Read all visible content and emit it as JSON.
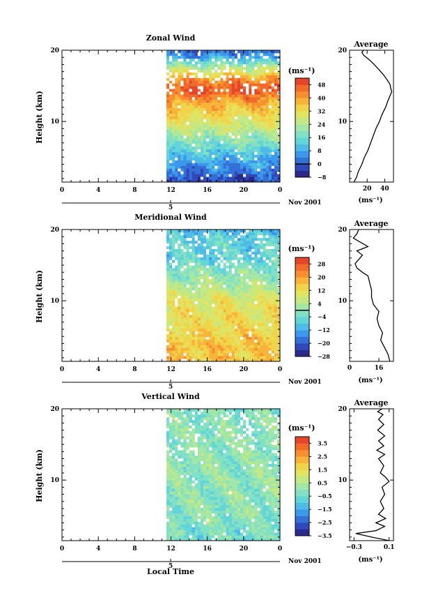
{
  "figure": {
    "date_label": "Nov 2001",
    "xlabel": "Local Time"
  },
  "chart_data": [
    {
      "type": "heatmap",
      "name": "zonal",
      "title": "Zonal Wind",
      "ylabel": "Height (km)",
      "x_ticks": [
        "0",
        "4",
        "8",
        "12",
        "16",
        "20",
        "0"
      ],
      "x_range": [
        0,
        24
      ],
      "y_ticks": [
        10,
        20
      ],
      "y_range": [
        1.5,
        20
      ],
      "date_marker": "5",
      "data_start_hour": 11.5,
      "colorbar": {
        "unit": "(ms⁻¹)",
        "min": -8,
        "max": 52,
        "step": 4,
        "tick_labels": [
          48,
          40,
          32,
          24,
          16,
          8,
          0,
          -8
        ],
        "zero_line": 0,
        "colors": [
          "#2b2a8c",
          "#2f4ab8",
          "#3370d8",
          "#3c98ea",
          "#4ebce6",
          "#63d4d8",
          "#82e0c4",
          "#a3e6a6",
          "#c4e884",
          "#e0e462",
          "#f2d44a",
          "#f8b43a",
          "#f78e30",
          "#f06a2a",
          "#e4462a"
        ]
      },
      "profile_by_height": [
        {
          "z": 1.5,
          "value": -3
        },
        {
          "z": 3,
          "value": 2
        },
        {
          "z": 5,
          "value": 10
        },
        {
          "z": 7,
          "value": 18
        },
        {
          "z": 9,
          "value": 26
        },
        {
          "z": 11,
          "value": 33
        },
        {
          "z": 13,
          "value": 40
        },
        {
          "z": 14,
          "value": 47
        },
        {
          "z": 15,
          "value": 47
        },
        {
          "z": 16,
          "value": 40
        },
        {
          "z": 17,
          "value": 30
        },
        {
          "z": 18,
          "value": 20
        },
        {
          "z": 19,
          "value": 8
        },
        {
          "z": 20,
          "value": 1
        }
      ],
      "average": {
        "title": "Average",
        "unit": "(ms⁻¹)",
        "x_ticks": [
          20,
          40
        ],
        "x_range": [
          0,
          50
        ],
        "profile": [
          {
            "z": 1.5,
            "v": 5
          },
          {
            "z": 2.2,
            "v": 8
          },
          {
            "z": 3,
            "v": 10
          },
          {
            "z": 4,
            "v": 14
          },
          {
            "z": 5,
            "v": 17
          },
          {
            "z": 6,
            "v": 21
          },
          {
            "z": 7,
            "v": 24
          },
          {
            "z": 8,
            "v": 27
          },
          {
            "z": 9,
            "v": 30
          },
          {
            "z": 10,
            "v": 34
          },
          {
            "z": 11,
            "v": 37
          },
          {
            "z": 12,
            "v": 41
          },
          {
            "z": 13,
            "v": 44
          },
          {
            "z": 13.6,
            "v": 46
          },
          {
            "z": 14.2,
            "v": 48
          },
          {
            "z": 14.6,
            "v": 47
          },
          {
            "z": 15.2,
            "v": 46
          },
          {
            "z": 15.8,
            "v": 43
          },
          {
            "z": 16.5,
            "v": 39
          },
          {
            "z": 17.2,
            "v": 34
          },
          {
            "z": 18,
            "v": 28
          },
          {
            "z": 18.7,
            "v": 22
          },
          {
            "z": 19.3,
            "v": 16
          },
          {
            "z": 19.7,
            "v": 14
          },
          {
            "z": 20,
            "v": 16
          }
        ]
      }
    },
    {
      "type": "heatmap",
      "name": "meridional",
      "title": "Meridional Wind",
      "ylabel": "Height (km)",
      "x_ticks": [
        "0",
        "4",
        "8",
        "12",
        "16",
        "20",
        "0"
      ],
      "x_range": [
        0,
        24
      ],
      "y_ticks": [
        10,
        20
      ],
      "y_range": [
        1.5,
        20
      ],
      "date_marker": "5",
      "data_start_hour": 11.5,
      "colorbar": {
        "unit": "(ms⁻¹)",
        "min": -28,
        "max": 32,
        "step": 4,
        "tick_labels": [
          28,
          20,
          12,
          4,
          -4,
          -12,
          -20,
          -28
        ],
        "zero_line": 0,
        "colors": [
          "#2b2a8c",
          "#2f4ab8",
          "#3370d8",
          "#3c98ea",
          "#4ebce6",
          "#63d4d8",
          "#82e0c4",
          "#a3e6a6",
          "#c4e884",
          "#e0e462",
          "#f2d44a",
          "#f8b43a",
          "#f78e30",
          "#f06a2a",
          "#e4462a"
        ]
      },
      "profile_by_height": [
        {
          "z": 1.5,
          "value": 16
        },
        {
          "z": 4,
          "value": 16
        },
        {
          "z": 7,
          "value": 12
        },
        {
          "z": 10,
          "value": 10
        },
        {
          "z": 12,
          "value": 4
        },
        {
          "z": 14,
          "value": 0
        },
        {
          "z": 16,
          "value": -6
        },
        {
          "z": 18,
          "value": -6
        },
        {
          "z": 20,
          "value": -10
        }
      ],
      "average": {
        "title": "Average",
        "unit": "(ms⁻¹)",
        "x_ticks": [
          0,
          16
        ],
        "x_range": [
          0,
          24
        ],
        "profile": [
          {
            "z": 1.5,
            "v": 22
          },
          {
            "z": 2.5,
            "v": 21
          },
          {
            "z": 3.5,
            "v": 19
          },
          {
            "z": 4.5,
            "v": 17
          },
          {
            "z": 5.5,
            "v": 18
          },
          {
            "z": 6.5,
            "v": 16
          },
          {
            "z": 7.5,
            "v": 15
          },
          {
            "z": 8.5,
            "v": 16
          },
          {
            "z": 9.5,
            "v": 13
          },
          {
            "z": 10.5,
            "v": 12
          },
          {
            "z": 11.5,
            "v": 12
          },
          {
            "z": 12.5,
            "v": 11
          },
          {
            "z": 13.5,
            "v": 10
          },
          {
            "z": 14,
            "v": 7
          },
          {
            "z": 14.6,
            "v": 4
          },
          {
            "z": 15.2,
            "v": 3
          },
          {
            "z": 15.8,
            "v": 5
          },
          {
            "z": 16.4,
            "v": 7
          },
          {
            "z": 17,
            "v": 4
          },
          {
            "z": 17.6,
            "v": 10
          },
          {
            "z": 18.2,
            "v": 6
          },
          {
            "z": 18.8,
            "v": 2
          },
          {
            "z": 19.4,
            "v": 4
          },
          {
            "z": 20,
            "v": 5
          }
        ]
      }
    },
    {
      "type": "heatmap",
      "name": "vertical",
      "title": "Vertical Wind",
      "ylabel": "Height (km)",
      "x_ticks": [
        "0",
        "4",
        "8",
        "12",
        "16",
        "20",
        "0"
      ],
      "x_range": [
        0,
        24
      ],
      "y_ticks": [
        10,
        20
      ],
      "y_range": [
        1.5,
        20
      ],
      "date_marker": "5",
      "data_start_hour": 11.5,
      "colorbar": {
        "unit": "(ms⁻¹)",
        "min": -3.5,
        "max": 4.0,
        "step": 0.5,
        "tick_labels": [
          3.5,
          2.5,
          1.5,
          0.5,
          -0.5,
          -1.5,
          -2.5,
          -3.5
        ],
        "zero_line": null,
        "colors": [
          "#2b2a8c",
          "#2f4ab8",
          "#3370d8",
          "#3c98ea",
          "#4ebce6",
          "#63d4d8",
          "#82e0c4",
          "#a3e6a6",
          "#c4e884",
          "#e0e462",
          "#f2d44a",
          "#f8b43a",
          "#f78e30",
          "#f06a2a",
          "#e4462a"
        ]
      },
      "profile_by_height": [
        {
          "z": 1.5,
          "value": -0.5
        },
        {
          "z": 5,
          "value": -0.1
        },
        {
          "z": 10,
          "value": 0.0
        },
        {
          "z": 15,
          "value": 0.0
        },
        {
          "z": 20,
          "value": -0.2
        }
      ],
      "average": {
        "title": "Average",
        "unit": "(ms⁻¹)",
        "x_ticks": [
          -0.3,
          0.1
        ],
        "x_tick_labels": [
          "−0.3",
          "0.1"
        ],
        "x_range": [
          -0.35,
          0.15
        ],
        "profile": [
          {
            "z": 1.5,
            "v": 0.1
          },
          {
            "z": 2.0,
            "v": -0.1
          },
          {
            "z": 2.5,
            "v": -0.28
          },
          {
            "z": 2.9,
            "v": -0.05
          },
          {
            "z": 3.5,
            "v": 0.05
          },
          {
            "z": 4.0,
            "v": -0.05
          },
          {
            "z": 4.6,
            "v": 0.06
          },
          {
            "z": 5.2,
            "v": -0.02
          },
          {
            "z": 6,
            "v": 0.04
          },
          {
            "z": 7,
            "v": 0.0
          },
          {
            "z": 8,
            "v": 0.05
          },
          {
            "z": 9,
            "v": 0.02
          },
          {
            "z": 9.8,
            "v": 0.1
          },
          {
            "z": 10.4,
            "v": 0.06
          },
          {
            "z": 11,
            "v": 0.0
          },
          {
            "z": 12,
            "v": 0.04
          },
          {
            "z": 13,
            "v": -0.02
          },
          {
            "z": 13.6,
            "v": 0.05
          },
          {
            "z": 14.2,
            "v": -0.04
          },
          {
            "z": 14.8,
            "v": 0.04
          },
          {
            "z": 15.5,
            "v": -0.02
          },
          {
            "z": 16.2,
            "v": 0.05
          },
          {
            "z": 17,
            "v": -0.03
          },
          {
            "z": 17.8,
            "v": 0.04
          },
          {
            "z": 18.5,
            "v": -0.02
          },
          {
            "z": 19.2,
            "v": 0.03
          },
          {
            "z": 19.6,
            "v": -0.03
          },
          {
            "z": 20,
            "v": 0.02
          }
        ]
      }
    }
  ]
}
